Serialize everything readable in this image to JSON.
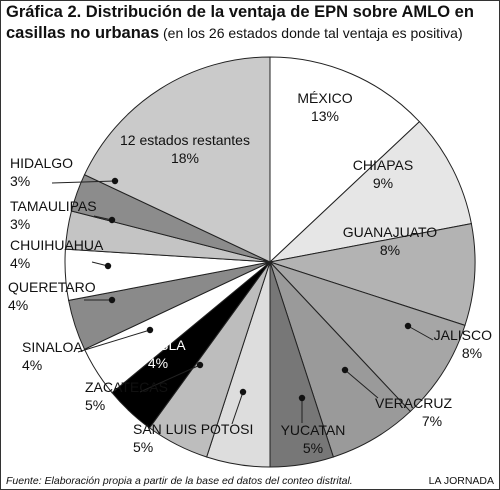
{
  "chart_data": {
    "type": "pie",
    "title": [
      "Gráfica 2. Distribución de la ventaja de EPN sobre AMLO en",
      "casillas no urbanas"
    ],
    "subtitle": "(en los 26 estados donde tal ventaja es positiva)",
    "categories": [
      "MÉXICO",
      "CHIAPAS",
      "GUANAJUATO",
      "JALISCO",
      "VERACRUZ",
      "YUCATAN",
      "SAN LUIS POTOSI",
      "ZACATECAS",
      "PUEBLA",
      "SINALOA",
      "QUERETARO",
      "CHUIHUAHUA",
      "TAMAULIPAS",
      "HIDALGO",
      "12 estados restantes"
    ],
    "values": [
      13,
      9,
      8,
      8,
      7,
      5,
      5,
      5,
      4,
      4,
      4,
      4,
      3,
      3,
      18
    ],
    "value_labels": [
      "13%",
      "9%",
      "8%",
      "8%",
      "7%",
      "5%",
      "5%",
      "5%",
      "4%",
      "4%",
      "4%",
      "4%",
      "3%",
      "3%",
      "18%"
    ],
    "colors": [
      "#ffffff",
      "#e6e6e6",
      "#b3b3b3",
      "#a6a6a6",
      "#9a9a9a",
      "#777777",
      "#dddddd",
      "#bdbdbd",
      "#000000",
      "#ffffff",
      "#8a8a8a",
      "#ffffff",
      "#c4c4c4",
      "#8c8c8c",
      "#cacaca"
    ],
    "source": "Fuente: Elaboración propia a partir de la base ed datos del conteo distrital.",
    "credit": "LA JORNADA"
  }
}
